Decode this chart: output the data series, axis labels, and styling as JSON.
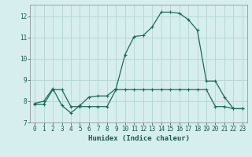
{
  "xlabel": "Humidex (Indice chaleur)",
  "background_color": "#d6eeee",
  "grid_color": "#b8d8d8",
  "line_color": "#1a6b5a",
  "xlim": [
    -0.5,
    23.5
  ],
  "ylim": [
    7,
    12.55
  ],
  "yticks": [
    7,
    8,
    9,
    10,
    11,
    12
  ],
  "xticks": [
    0,
    1,
    2,
    3,
    4,
    5,
    6,
    7,
    8,
    9,
    10,
    11,
    12,
    13,
    14,
    15,
    16,
    17,
    18,
    19,
    20,
    21,
    22,
    23
  ],
  "curve1_x": [
    0,
    1,
    2,
    3,
    4,
    5,
    6,
    7,
    8,
    9,
    10,
    11,
    12,
    13,
    14,
    15,
    16,
    17,
    18,
    19,
    20,
    21,
    22,
    23
  ],
  "curve1_y": [
    7.9,
    8.0,
    8.6,
    7.8,
    7.45,
    7.8,
    8.2,
    8.25,
    8.25,
    8.6,
    10.2,
    11.05,
    11.1,
    11.5,
    12.2,
    12.2,
    12.15,
    11.85,
    11.35,
    8.95,
    8.95,
    8.2,
    7.65,
    7.65
  ],
  "curve2_x": [
    0,
    1,
    2,
    3,
    4,
    5,
    6,
    7,
    8,
    9,
    10,
    11,
    12,
    13,
    14,
    15,
    16,
    17,
    18,
    19,
    20,
    21,
    22,
    23
  ],
  "curve2_y": [
    7.85,
    7.85,
    8.55,
    8.55,
    7.75,
    7.75,
    7.75,
    7.75,
    7.75,
    8.55,
    8.55,
    8.55,
    8.55,
    8.55,
    8.55,
    8.55,
    8.55,
    8.55,
    8.55,
    8.55,
    7.75,
    7.75,
    7.65,
    7.65
  ]
}
